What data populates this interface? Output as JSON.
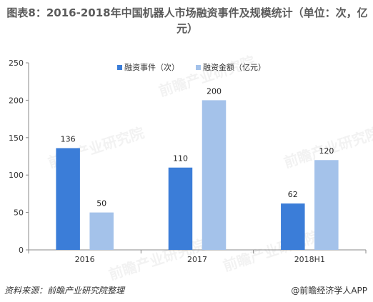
{
  "title": "图表8：2016-2018年中国机器人市场融资事件及规模统计（单位：次，亿元）",
  "chart_data": {
    "type": "bar",
    "categories": [
      "2016",
      "2017",
      "2018H1"
    ],
    "series": [
      {
        "name": "融资事件（次）",
        "values": [
          136,
          110,
          62
        ],
        "color": "#3b7dd8"
      },
      {
        "name": "融资金额（亿元）",
        "values": [
          50,
          200,
          120
        ],
        "color": "#a4c2ea"
      }
    ],
    "ylim": [
      0,
      250
    ],
    "yticks": [
      0,
      50,
      100,
      150,
      200,
      250
    ],
    "legend_position": "top-right",
    "grid": false
  },
  "watermark": "前瞻产业研究院",
  "footer": {
    "source": "资料来源：前瞻产业研究院整理",
    "brand": "@前瞻经济学人APP"
  }
}
